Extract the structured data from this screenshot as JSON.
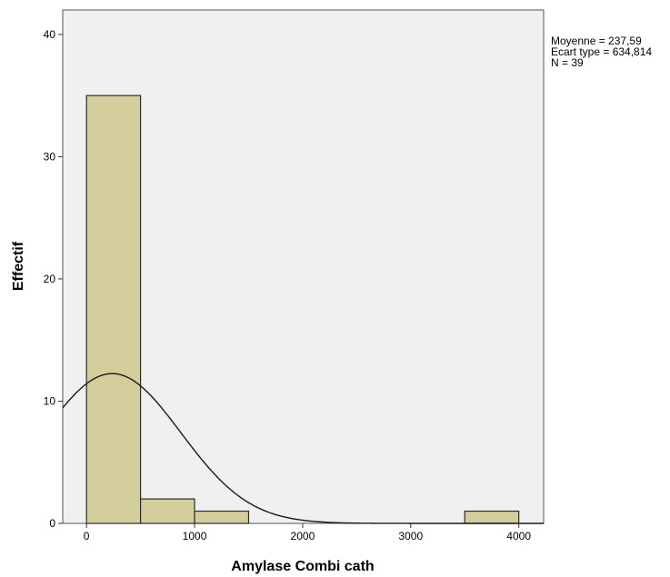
{
  "chart_data": {
    "type": "bar",
    "subtype": "histogram",
    "xlabel": "Amylase Combi cath",
    "ylabel": "Effectif",
    "xlim": [
      -220,
      4230
    ],
    "ylim": [
      0,
      42
    ],
    "xticks": [
      0,
      1000,
      2000,
      3000,
      4000
    ],
    "yticks": [
      0,
      10,
      20,
      30,
      40
    ],
    "bin_width": 500,
    "bins": [
      {
        "start": 0,
        "end": 500,
        "value": 35
      },
      {
        "start": 500,
        "end": 1000,
        "value": 2
      },
      {
        "start": 1000,
        "end": 1500,
        "value": 1
      },
      {
        "start": 3500,
        "end": 4000,
        "value": 1
      }
    ],
    "normal_curve": {
      "mean": 237.59,
      "std": 634.814,
      "n": 39
    },
    "stats": [
      "Moyenne = 237,59",
      "Ecart type = 634,814",
      "N = 39"
    ],
    "grid": false,
    "colors": {
      "plot_background": "#f0f0f0",
      "bar_fill": "#d3ce9b",
      "bar_stroke": "#2b2b2b",
      "curve": "#1a1a1a"
    }
  }
}
